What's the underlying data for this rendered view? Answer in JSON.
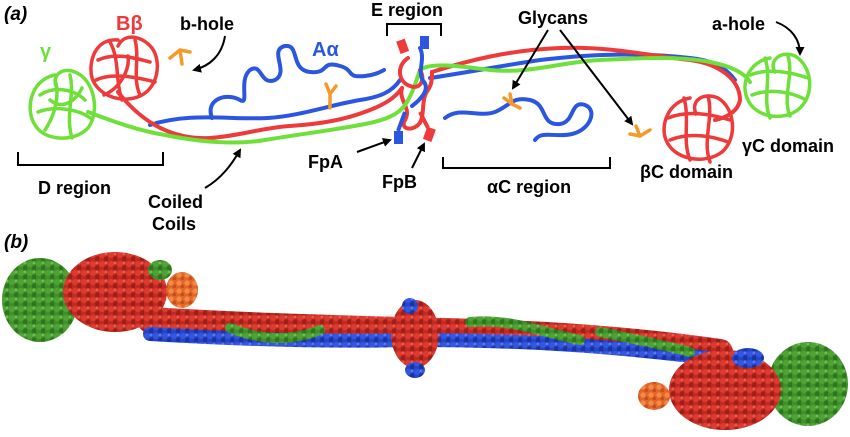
{
  "panels": {
    "a": "(a)",
    "b": "(b)"
  },
  "chains": {
    "gamma": "γ",
    "beta": "Bβ",
    "alpha": "Aα"
  },
  "labels": {
    "b_hole": "b-hole",
    "e_region": "E region",
    "glycans": "Glycans",
    "a_hole": "a-hole",
    "d_region": "D region",
    "coiled_coils_line1": "Coiled",
    "coiled_coils_line2": "Coils",
    "fpa": "FpA",
    "fpb": "FpB",
    "ac_region": "αC region",
    "bc_domain": "βC domain",
    "gc_domain": "γC domain"
  },
  "colors": {
    "gamma": "#6fe03a",
    "beta": "#ee3a3a",
    "alpha": "#2a56e0",
    "glycan": "#f59a2a",
    "gamma_dark": "#3f8f2a",
    "beta_dark": "#c02a22",
    "alpha_dark": "#2545c8",
    "glycan_dark": "#ef7a35"
  }
}
